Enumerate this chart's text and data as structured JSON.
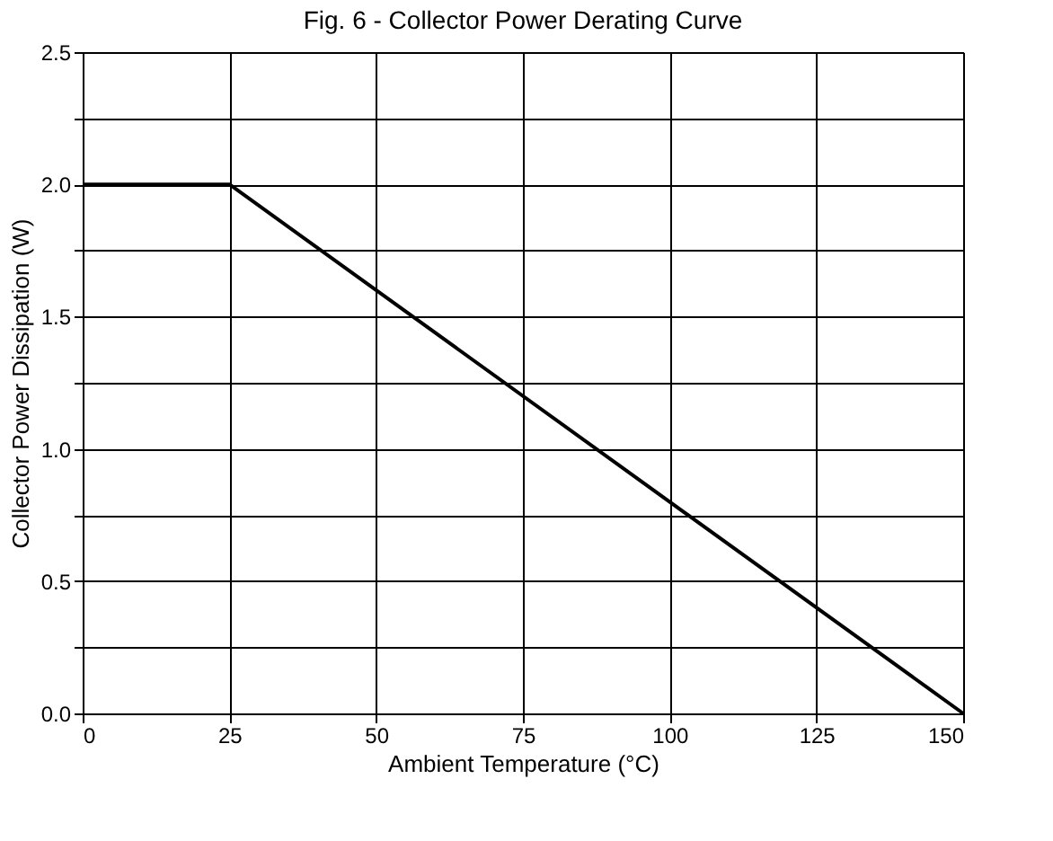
{
  "chart_data": {
    "type": "line",
    "title": "Fig. 6 - Collector Power Derating Curve",
    "xlabel": "Ambient Temperature (°C)",
    "ylabel": "Collector Power Dissipation  (W)",
    "x": [
      0,
      25,
      150
    ],
    "series": [
      {
        "color": "#000000",
        "values": [
          2.0,
          2.0,
          0.0
        ]
      }
    ],
    "xlim": [
      0,
      150
    ],
    "xticks": [
      0,
      25,
      50,
      75,
      100,
      125,
      150
    ],
    "ylim": [
      0,
      2.5
    ],
    "yticks": [
      {
        "value": 0,
        "label": "0.0"
      },
      {
        "value": 0.25,
        "label": null
      },
      0.5,
      {
        "value": 0.75,
        "label": null
      },
      {
        "value": 1,
        "label": "1.0"
      },
      {
        "value": 1.25,
        "label": null
      },
      1.5,
      {
        "value": 1.75,
        "label": null
      },
      {
        "value": 2,
        "label": "2.0"
      },
      {
        "value": 2.25,
        "label": null
      },
      2.5
    ],
    "grid": true,
    "marker": "none",
    "line_style": "solid"
  }
}
